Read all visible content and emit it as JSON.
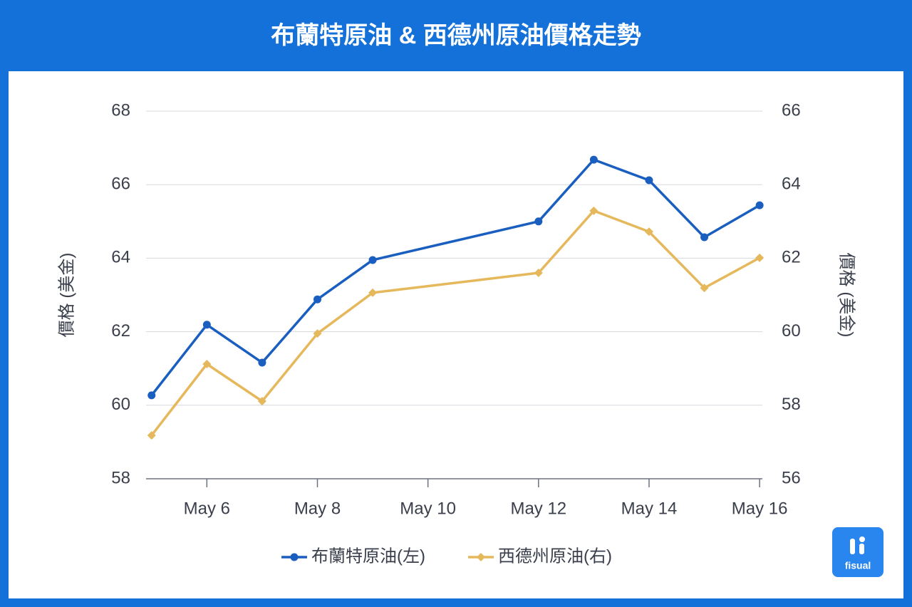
{
  "chart_data": {
    "type": "line",
    "title": "布蘭特原油 & 西德州原油價格走勢",
    "x": [
      5,
      6,
      7,
      8,
      9,
      12,
      13,
      14,
      15,
      16
    ],
    "series": [
      {
        "name": "布蘭特原油(左)",
        "color": "#1a5fbf",
        "marker": "circle",
        "values": [
          60.27,
          62.19,
          61.16,
          62.88,
          63.95,
          65.0,
          66.68,
          66.12,
          64.57,
          65.44
        ]
      },
      {
        "name": "西德州原油(右)",
        "color": "#e6b85c",
        "marker": "diamond",
        "axis": "y2",
        "values": [
          57.18,
          59.12,
          58.11,
          59.95,
          61.06,
          61.6,
          63.29,
          62.72,
          61.19,
          62.01
        ]
      }
    ],
    "xlim": [
      4.9,
      16.05
    ],
    "xticks": [
      {
        "value": 6,
        "label": "May 6"
      },
      {
        "value": 8,
        "label": "May 8"
      },
      {
        "value": 10,
        "label": "May 10"
      },
      {
        "value": 12,
        "label": "May 12"
      },
      {
        "value": 14,
        "label": "May 14"
      },
      {
        "value": 16,
        "label": "May 16"
      }
    ],
    "ylim": [
      58,
      68
    ],
    "yticks": [
      58,
      60,
      62,
      64,
      66,
      68
    ],
    "y2lim": [
      56,
      66
    ],
    "y2ticks": [
      56,
      58,
      60,
      62,
      64,
      66
    ],
    "ylabel": "價格 (美金)",
    "y2label": "價格 (美金)",
    "grid": true,
    "legend": "bottom",
    "logo": "fisual"
  }
}
